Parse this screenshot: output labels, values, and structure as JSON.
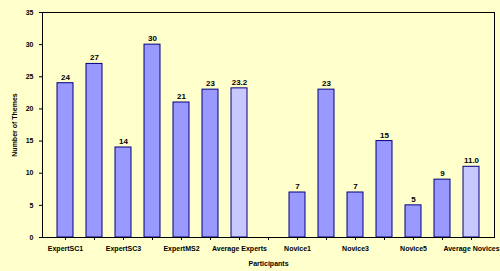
{
  "chart_data": {
    "type": "bar",
    "x_label": "Participants",
    "y_label": "Number of Themes",
    "categories": [
      "ExpertSC1",
      null,
      "ExpertSC3",
      null,
      "ExpertMS2",
      null,
      "Average Experts",
      null,
      "Novice1",
      null,
      "Novice3",
      null,
      "Novice5",
      null,
      "Average Novices"
    ],
    "values": [
      24,
      27,
      14,
      30,
      21,
      23,
      23.2,
      null,
      7,
      23,
      7,
      15,
      5,
      9,
      11
    ],
    "value_labels": [
      "24",
      "27",
      "14",
      "30",
      "21",
      "23",
      "23.2",
      null,
      "7",
      "23",
      "7",
      "15",
      "5",
      "9",
      "11.0"
    ],
    "colors": [
      "#9999ff",
      "#9999ff",
      "#9999ff",
      "#9999ff",
      "#9999ff",
      "#9999ff",
      "#c8c8ff",
      null,
      "#9999ff",
      "#9999ff",
      "#9999ff",
      "#9999ff",
      "#9999ff",
      "#9999ff",
      "#c8c8ff"
    ],
    "ylim": [
      0,
      35
    ],
    "yticks": [
      0,
      5,
      10,
      15,
      20,
      25,
      30,
      35
    ],
    "data_labels": true,
    "grid": false
  }
}
